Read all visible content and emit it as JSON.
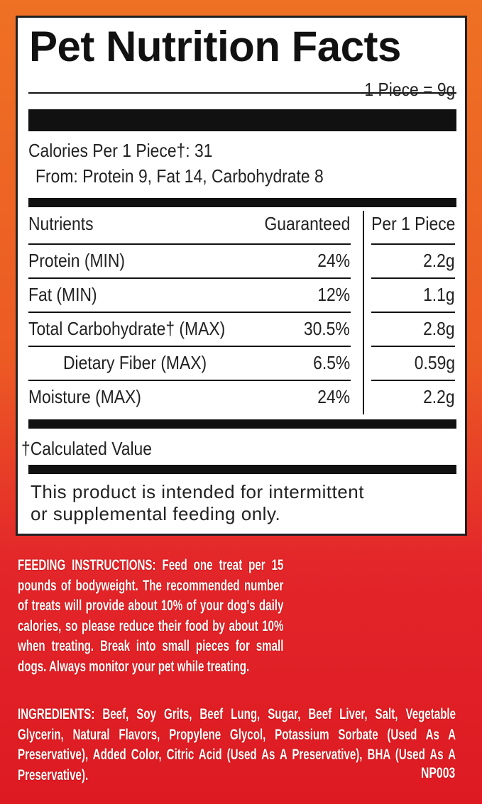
{
  "title": "Pet Nutrition Facts",
  "serving": "1 Piece = 9g",
  "calories": "Calories Per 1 Piece†: 31",
  "calories_from": "From: Protein 9, Fat 14, Carbohydrate 8",
  "table": {
    "headers": [
      "Nutrients",
      "Guaranteed",
      "Per 1 Piece"
    ],
    "rows": [
      {
        "name": "Protein (MIN)",
        "guaranteed": "24%",
        "per_piece": "2.2g"
      },
      {
        "name": "Fat (MIN)",
        "guaranteed": "12%",
        "per_piece": "1.1g"
      },
      {
        "name": "Total Carbohydrate†  (MAX)",
        "guaranteed": "30.5%",
        "per_piece": "2.8g"
      },
      {
        "name": "Dietary Fiber (MAX)",
        "guaranteed": "6.5%",
        "per_piece": "0.59g"
      },
      {
        "name": "Moisture (MAX)",
        "guaranteed": "24%",
        "per_piece": "2.2g"
      }
    ]
  },
  "footnote": "†Calculated Value",
  "statement_line1": "This product is intended for intermittent",
  "statement_line2": "or supplemental feeding only.",
  "feeding_label": "FEEDING INSTRUCTIONS:",
  "feeding_text": "Feed one treat per 15 pounds of bodyweight. The recommended number of treats will provide about 10% of your dog's daily calories, so please reduce their food by about 10% when treating. Break into small pieces for small dogs. Always monitor your pet while treating.",
  "ingredients_label": "INGREDIENTS:",
  "ingredients_text": "Beef, Soy Grits, Beef Lung, Sugar, Beef Liver, Salt, Vegetable Glycerin, Natural Flavors, Propylene Glycol, Potassium Sorbate (Used As A Preservative), Added Color, Citric Acid (Used As A Preservative), BHA (Used As A Preservative).",
  "code": "NP003",
  "colors": {
    "top": "#ee7124",
    "bottom": "#dd1a22"
  }
}
